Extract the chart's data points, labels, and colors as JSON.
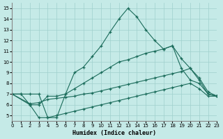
{
  "xlabel": "Humidex (Indice chaleur)",
  "xlim": [
    0,
    23
  ],
  "ylim": [
    4.5,
    15.5
  ],
  "xticks": [
    0,
    1,
    2,
    3,
    4,
    5,
    6,
    7,
    8,
    9,
    10,
    11,
    12,
    13,
    14,
    15,
    16,
    17,
    18,
    19,
    20,
    21,
    22,
    23
  ],
  "yticks": [
    5,
    6,
    7,
    8,
    9,
    10,
    11,
    12,
    13,
    14,
    15
  ],
  "background_color": "#c5eae7",
  "grid_color": "#9fd0cc",
  "line_color": "#1a6b5a",
  "line1_x": [
    0,
    1,
    2,
    3,
    4,
    5,
    6,
    7,
    8,
    9,
    10,
    11,
    12,
    13,
    14,
    15,
    16,
    17,
    18,
    19,
    20,
    21,
    22,
    23
  ],
  "line1_y": [
    7.0,
    7.0,
    7.0,
    7.0,
    4.8,
    4.8,
    7.0,
    9.0,
    9.5,
    10.5,
    11.5,
    12.8,
    14.0,
    15.0,
    14.2,
    13.0,
    12.0,
    11.2,
    11.5,
    10.3,
    9.4,
    8.3,
    7.0,
    6.8
  ],
  "line2_x": [
    0,
    2,
    3,
    4,
    5,
    6,
    7,
    8,
    9,
    10,
    11,
    12,
    13,
    14,
    15,
    16,
    17,
    18,
    19,
    20,
    21,
    22,
    23
  ],
  "line2_y": [
    7.0,
    6.0,
    6.0,
    6.8,
    6.8,
    7.0,
    7.5,
    8.0,
    8.5,
    9.0,
    9.5,
    10.0,
    10.2,
    10.5,
    10.8,
    11.0,
    11.2,
    11.5,
    9.4,
    8.3,
    8.0,
    7.0,
    6.8
  ],
  "line3_x": [
    0,
    2,
    3,
    4,
    5,
    6,
    7,
    8,
    9,
    10,
    11,
    12,
    13,
    14,
    15,
    16,
    17,
    18,
    19,
    20,
    21,
    22,
    23
  ],
  "line3_y": [
    7.0,
    6.1,
    6.2,
    6.5,
    6.6,
    6.7,
    6.8,
    7.0,
    7.1,
    7.3,
    7.5,
    7.7,
    7.9,
    8.1,
    8.3,
    8.5,
    8.7,
    8.9,
    9.1,
    9.4,
    8.5,
    7.2,
    6.8
  ],
  "line4_x": [
    0,
    1,
    2,
    3,
    4,
    5,
    6,
    7,
    8,
    9,
    10,
    11,
    12,
    13,
    14,
    15,
    16,
    17,
    18,
    19,
    20,
    21,
    22,
    23
  ],
  "line4_y": [
    7.0,
    7.0,
    6.0,
    4.8,
    4.8,
    5.0,
    5.2,
    5.4,
    5.6,
    5.8,
    6.0,
    6.2,
    6.4,
    6.6,
    6.8,
    7.0,
    7.2,
    7.4,
    7.6,
    7.8,
    8.0,
    7.5,
    6.8,
    6.8
  ]
}
